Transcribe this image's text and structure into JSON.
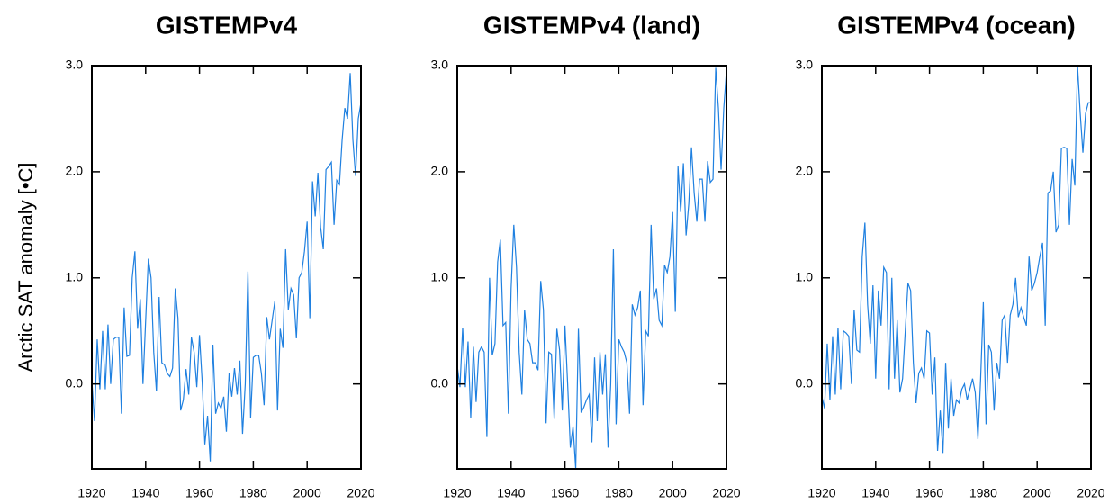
{
  "chart_data": [
    {
      "type": "line",
      "title": "GISTEMPv4",
      "ylabel": "Arctic SAT anomaly [•C]",
      "color": "#1f80e0",
      "x": [
        1920,
        1921,
        1922,
        1923,
        1924,
        1925,
        1926,
        1927,
        1928,
        1929,
        1930,
        1931,
        1932,
        1933,
        1934,
        1935,
        1936,
        1937,
        1938,
        1939,
        1940,
        1941,
        1942,
        1943,
        1944,
        1945,
        1946,
        1947,
        1948,
        1949,
        1950,
        1951,
        1952,
        1953,
        1954,
        1955,
        1956,
        1957,
        1958,
        1959,
        1960,
        1961,
        1962,
        1963,
        1964,
        1965,
        1966,
        1967,
        1968,
        1969,
        1970,
        1971,
        1972,
        1973,
        1974,
        1975,
        1976,
        1977,
        1978,
        1979,
        1980,
        1981,
        1982,
        1983,
        1984,
        1985,
        1986,
        1987,
        1988,
        1989,
        1990,
        1991,
        1992,
        1993,
        1994,
        1995,
        1996,
        1997,
        1998,
        1999,
        2000,
        2001,
        2002,
        2003,
        2004,
        2005,
        2006,
        2007,
        2008,
        2009,
        2010,
        2011,
        2012,
        2013,
        2014,
        2015,
        2016,
        2017,
        2018,
        2019,
        2020
      ],
      "values": [
        0.03,
        -0.35,
        0.42,
        -0.05,
        0.5,
        -0.05,
        0.56,
        0.0,
        0.42,
        0.44,
        0.44,
        -0.28,
        0.72,
        0.26,
        0.27,
        1.0,
        1.25,
        0.52,
        0.8,
        0.0,
        0.6,
        1.18,
        1.0,
        0.3,
        -0.07,
        0.82,
        0.2,
        0.18,
        0.1,
        0.07,
        0.15,
        0.9,
        0.62,
        -0.25,
        -0.15,
        0.14,
        -0.1,
        0.44,
        0.3,
        -0.03,
        0.46,
        0.02,
        -0.57,
        -0.3,
        -0.73,
        0.37,
        -0.28,
        -0.18,
        -0.23,
        -0.12,
        -0.45,
        0.1,
        -0.12,
        0.15,
        -0.1,
        0.22,
        -0.47,
        0.0,
        1.06,
        -0.32,
        0.25,
        0.27,
        0.27,
        0.1,
        -0.2,
        0.63,
        0.42,
        0.6,
        0.78,
        -0.25,
        0.52,
        0.34,
        1.27,
        0.7,
        0.9,
        0.84,
        0.43,
        1.0,
        1.05,
        1.25,
        1.53,
        0.62,
        1.91,
        1.58,
        1.99,
        1.48,
        1.27,
        2.02,
        2.05,
        2.09,
        1.5,
        1.92,
        1.88,
        2.3,
        2.6,
        2.5,
        2.93,
        2.3,
        1.96,
        2.5,
        2.65
      ],
      "xlim": [
        1920,
        2020
      ],
      "xticks": [
        1920,
        1940,
        1960,
        1980,
        2000,
        2020
      ],
      "ylim": [
        -0.8,
        3.0
      ],
      "yticks": [
        {
          "value": 0,
          "label": "0.0"
        },
        {
          "value": 1,
          "label": "1.0"
        },
        {
          "value": 2,
          "label": "2.0"
        },
        {
          "value": 3,
          "label": "3.0"
        }
      ]
    },
    {
      "type": "line",
      "title": "GISTEMPv4 (land)",
      "color": "#1f80e0",
      "x": [
        1920,
        1921,
        1922,
        1923,
        1924,
        1925,
        1926,
        1927,
        1928,
        1929,
        1930,
        1931,
        1932,
        1933,
        1934,
        1935,
        1936,
        1937,
        1938,
        1939,
        1940,
        1941,
        1942,
        1943,
        1944,
        1945,
        1946,
        1947,
        1948,
        1949,
        1950,
        1951,
        1952,
        1953,
        1954,
        1955,
        1956,
        1957,
        1958,
        1959,
        1960,
        1961,
        1962,
        1963,
        1964,
        1965,
        1966,
        1967,
        1968,
        1969,
        1970,
        1971,
        1972,
        1973,
        1974,
        1975,
        1976,
        1977,
        1978,
        1979,
        1980,
        1981,
        1982,
        1983,
        1984,
        1985,
        1986,
        1987,
        1988,
        1989,
        1990,
        1991,
        1992,
        1993,
        1994,
        1995,
        1996,
        1997,
        1998,
        1999,
        2000,
        2001,
        2002,
        2003,
        2004,
        2005,
        2006,
        2007,
        2008,
        2009,
        2010,
        2011,
        2012,
        2013,
        2014,
        2015,
        2016,
        2017,
        2018,
        2019,
        2020
      ],
      "values": [
        0.17,
        -0.03,
        0.53,
        -0.03,
        0.4,
        -0.32,
        0.35,
        -0.17,
        0.3,
        0.35,
        0.3,
        -0.5,
        1.0,
        0.27,
        0.38,
        1.15,
        1.36,
        0.55,
        0.58,
        -0.28,
        0.9,
        1.5,
        1.1,
        0.3,
        -0.1,
        0.7,
        0.42,
        0.38,
        0.2,
        0.2,
        0.13,
        0.97,
        0.7,
        -0.37,
        0.3,
        0.28,
        -0.33,
        0.52,
        0.32,
        -0.25,
        0.55,
        0.0,
        -0.6,
        -0.4,
        -0.8,
        0.52,
        -0.27,
        -0.22,
        -0.15,
        -0.1,
        -0.55,
        0.25,
        -0.35,
        0.3,
        -0.1,
        0.28,
        -0.6,
        0.0,
        1.27,
        -0.38,
        0.42,
        0.35,
        0.3,
        0.2,
        -0.28,
        0.75,
        0.65,
        0.72,
        0.88,
        -0.2,
        0.5,
        0.45,
        1.5,
        0.8,
        0.9,
        0.6,
        0.55,
        1.12,
        1.05,
        1.2,
        1.62,
        0.68,
        2.05,
        1.62,
        2.08,
        1.4,
        1.7,
        2.23,
        1.8,
        1.53,
        1.93,
        1.93,
        1.53,
        2.1,
        1.9,
        1.93,
        2.98,
        2.6,
        2.02,
        2.6,
        2.95
      ],
      "xlim": [
        1920,
        2020
      ],
      "xticks": [
        1920,
        1940,
        1960,
        1980,
        2000,
        2020
      ],
      "ylim": [
        -0.8,
        3.0
      ],
      "yticks": [
        {
          "value": 0,
          "label": "0.0"
        },
        {
          "value": 1,
          "label": "1.0"
        },
        {
          "value": 2,
          "label": "2.0"
        },
        {
          "value": 3,
          "label": "3.0"
        }
      ]
    },
    {
      "type": "line",
      "title": "GISTEMPv4 (ocean)",
      "color": "#1f80e0",
      "x": [
        1920,
        1921,
        1922,
        1923,
        1924,
        1925,
        1926,
        1927,
        1928,
        1929,
        1930,
        1931,
        1932,
        1933,
        1934,
        1935,
        1936,
        1937,
        1938,
        1939,
        1940,
        1941,
        1942,
        1943,
        1944,
        1945,
        1946,
        1947,
        1948,
        1949,
        1950,
        1951,
        1952,
        1953,
        1954,
        1955,
        1956,
        1957,
        1958,
        1959,
        1960,
        1961,
        1962,
        1963,
        1964,
        1965,
        1966,
        1967,
        1968,
        1969,
        1970,
        1971,
        1972,
        1973,
        1974,
        1975,
        1976,
        1977,
        1978,
        1979,
        1980,
        1981,
        1982,
        1983,
        1984,
        1985,
        1986,
        1987,
        1988,
        1989,
        1990,
        1991,
        1992,
        1993,
        1994,
        1995,
        1996,
        1997,
        1998,
        1999,
        2000,
        2001,
        2002,
        2003,
        2004,
        2005,
        2006,
        2007,
        2008,
        2009,
        2010,
        2011,
        2012,
        2013,
        2014,
        2015,
        2016,
        2017,
        2018,
        2019,
        2020
      ],
      "values": [
        -0.12,
        -0.23,
        0.38,
        -0.15,
        0.45,
        -0.1,
        0.53,
        -0.05,
        0.5,
        0.48,
        0.45,
        0.0,
        0.7,
        0.32,
        0.3,
        1.2,
        1.52,
        0.75,
        0.38,
        0.93,
        0.05,
        0.88,
        0.55,
        1.1,
        1.05,
        -0.05,
        1.0,
        0.05,
        0.6,
        -0.08,
        0.05,
        0.5,
        0.95,
        0.88,
        0.2,
        -0.18,
        0.1,
        0.15,
        0.05,
        0.5,
        0.48,
        -0.1,
        0.25,
        -0.63,
        -0.25,
        -0.65,
        0.2,
        -0.42,
        0.05,
        -0.3,
        -0.15,
        -0.18,
        -0.05,
        0.0,
        -0.15,
        -0.05,
        0.05,
        -0.08,
        -0.52,
        0.05,
        0.77,
        -0.38,
        0.37,
        0.3,
        -0.25,
        0.2,
        0.05,
        0.6,
        0.65,
        0.2,
        0.65,
        0.75,
        1.0,
        0.63,
        0.72,
        0.63,
        0.55,
        1.2,
        0.88,
        0.95,
        1.05,
        1.2,
        1.33,
        0.55,
        1.8,
        1.82,
        2.0,
        1.43,
        1.5,
        2.22,
        2.23,
        2.22,
        1.5,
        2.12,
        1.87,
        3.0,
        2.55,
        2.18,
        2.55,
        2.65,
        2.65
      ],
      "xlim": [
        1920,
        2020
      ],
      "xticks": [
        1920,
        1940,
        1960,
        1980,
        2000,
        2020
      ],
      "ylim": [
        -0.8,
        3.0
      ],
      "yticks": [
        {
          "value": 0,
          "label": "0.0"
        },
        {
          "value": 1,
          "label": "1.0"
        },
        {
          "value": 2,
          "label": "2.0"
        },
        {
          "value": 3,
          "label": "3.0"
        }
      ]
    }
  ]
}
